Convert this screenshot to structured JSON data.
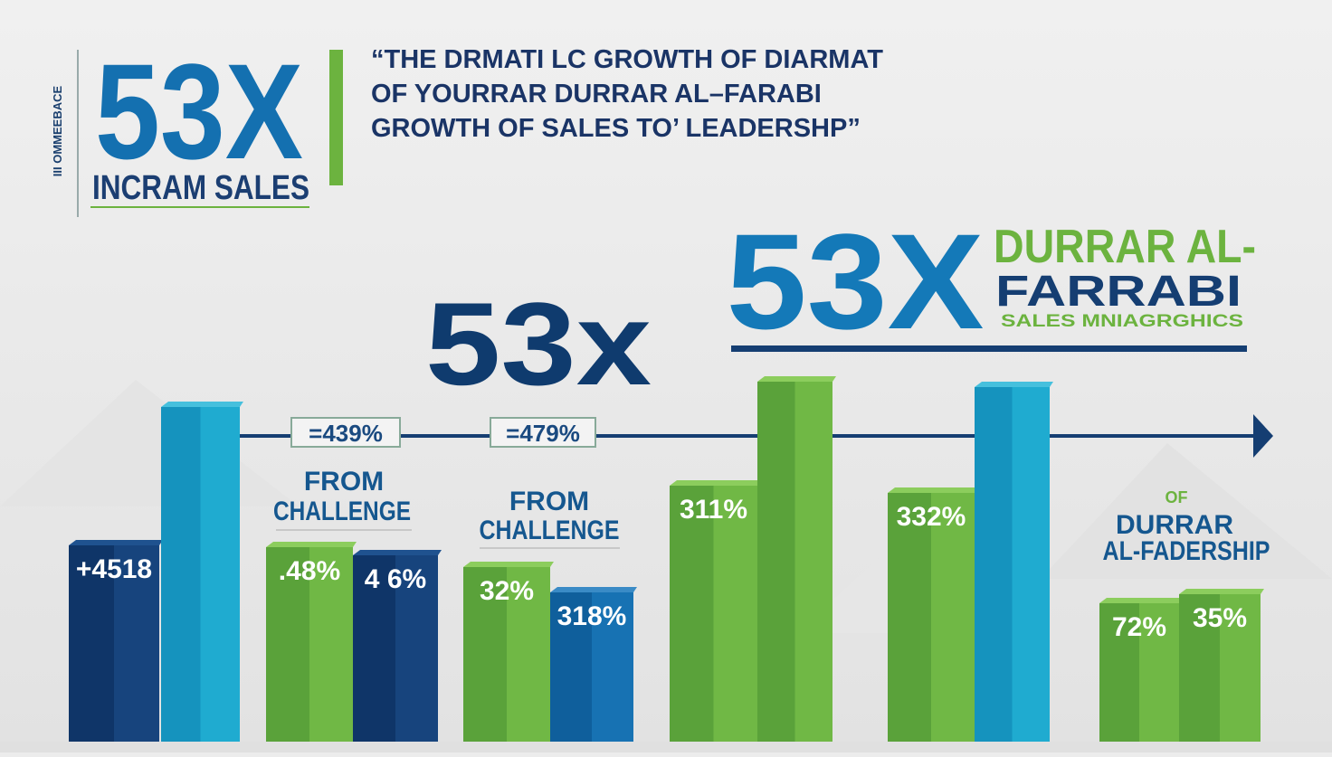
{
  "sidebar": {
    "vertical_text": "III OMMEEBACE",
    "big": "53X",
    "caption": "INCRAM SALES"
  },
  "quote": {
    "lines": [
      "“THE DRMATI LC GROWTH OF DIARMAT",
      "OF YOURRAR DURRAR AL–FARABI",
      "GROWTH OF SALES TO’ LEADERSHP”"
    ]
  },
  "center": {
    "big": "53x"
  },
  "brand": {
    "big": "53X",
    "line1": "DURRAR AL-",
    "line2": "FARRABI",
    "tagline": "SALES MNIAGRGHICS"
  },
  "callouts": [
    "=439%",
    "=479%"
  ],
  "captions": [
    {
      "line1": "FROM",
      "line2": "CHALLENGE"
    },
    {
      "line1": "FROM",
      "line2": "CHALLENGE"
    }
  ],
  "closing": {
    "small": "OF",
    "line1": "DURRAR",
    "line2": "AL-FADERSHIP"
  },
  "bar_labels": [
    "+4518",
    ".48%",
    "4 6%",
    "32%",
    "318%",
    "311%",
    "332%",
    "72%",
    "35%"
  ]
}
